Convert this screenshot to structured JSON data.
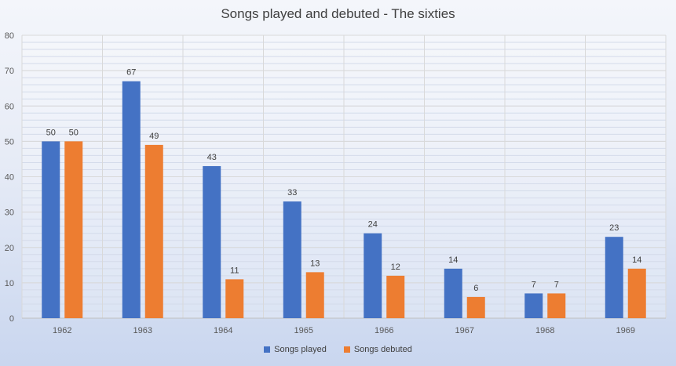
{
  "chart_data": {
    "type": "bar",
    "title": "Songs played and debuted - The sixties",
    "xlabel": "",
    "ylabel": "",
    "categories": [
      "1962",
      "1963",
      "1964",
      "1965",
      "1966",
      "1967",
      "1968",
      "1969"
    ],
    "series": [
      {
        "name": "Songs played",
        "values": [
          50,
          67,
          43,
          33,
          24,
          14,
          7,
          23
        ],
        "color": "#4472c4"
      },
      {
        "name": "Songs debuted",
        "values": [
          50,
          49,
          11,
          13,
          12,
          6,
          7,
          14
        ],
        "color": "#ed7d31"
      }
    ],
    "ylim": [
      0,
      80
    ],
    "yticks": [
      0,
      10,
      20,
      30,
      40,
      50,
      60,
      70,
      80
    ],
    "grid": true,
    "legend_position": "bottom"
  }
}
